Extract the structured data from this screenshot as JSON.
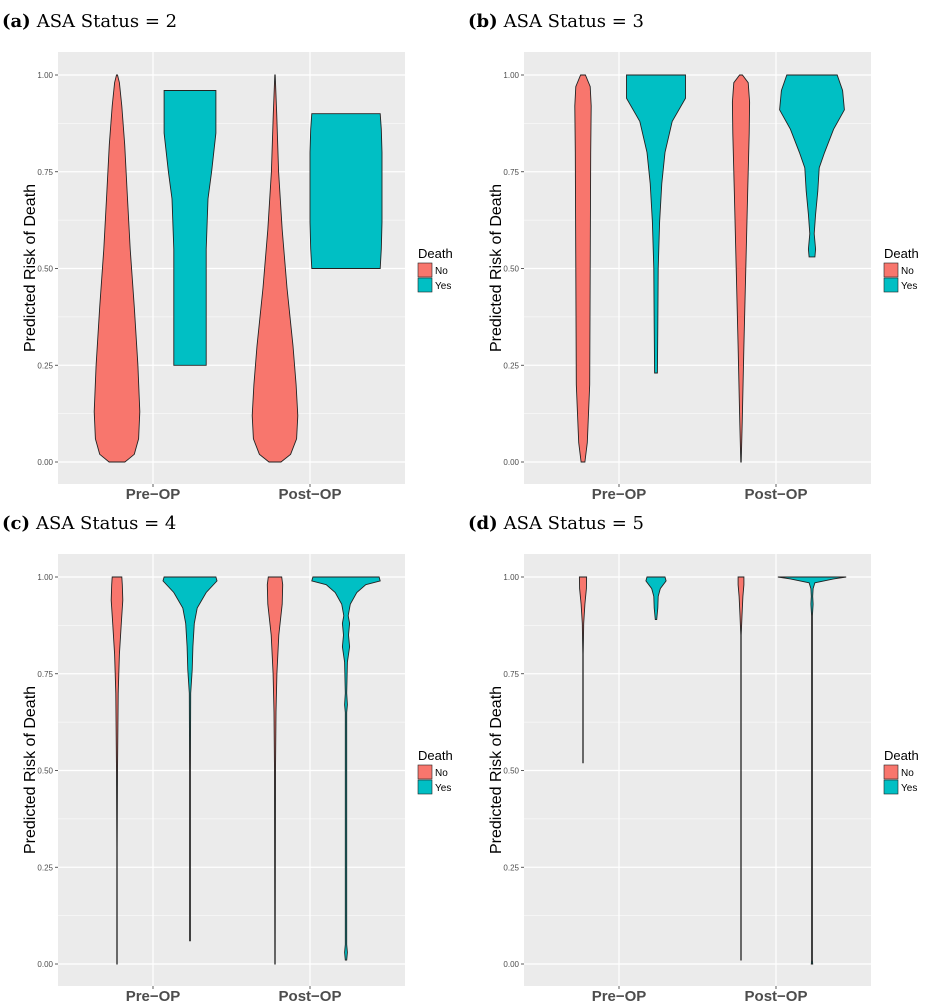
{
  "chart_data": [
    {
      "type": "violin",
      "caption_letter": "(a)",
      "caption_text": "ASA Status = 2",
      "ylabel": "Predicted Risk of Death",
      "categories": [
        "Pre−OP",
        "Post−OP"
      ],
      "yticks": [
        "0.00",
        "0.25",
        "0.50",
        "0.75",
        "1.00"
      ],
      "ylim": [
        0,
        1
      ],
      "legend": {
        "title": "Death",
        "placement": "right",
        "entries": [
          "No",
          "Yes"
        ]
      },
      "colors": {
        "No": "#F8766D",
        "Yes": "#00BFC4",
        "panel_bg": "#EBEBEB",
        "grid": "#FFFFFF"
      },
      "violins": [
        {
          "category": "Pre−OP",
          "group": "No",
          "range": [
            0.0,
            1.0
          ],
          "profile": [
            [
              0,
              0.33
            ],
            [
              0.02,
              0.72
            ],
            [
              0.06,
              0.9
            ],
            [
              0.13,
              0.95
            ],
            [
              0.25,
              0.87
            ],
            [
              0.4,
              0.72
            ],
            [
              0.55,
              0.55
            ],
            [
              0.7,
              0.42
            ],
            [
              0.82,
              0.32
            ],
            [
              0.92,
              0.2
            ],
            [
              0.98,
              0.1
            ],
            [
              1.0,
              0.02
            ]
          ]
        },
        {
          "category": "Pre−OP",
          "group": "Yes",
          "range": [
            0.25,
            0.96
          ],
          "profile": [
            [
              0.25,
              0.45
            ],
            [
              0.4,
              0.45
            ],
            [
              0.55,
              0.45
            ],
            [
              0.68,
              0.5
            ],
            [
              0.75,
              0.6
            ],
            [
              0.85,
              0.72
            ],
            [
              0.96,
              0.72
            ]
          ]
        },
        {
          "category": "Post−OP",
          "group": "No",
          "range": [
            0.0,
            1.0
          ],
          "profile": [
            [
              0,
              0.25
            ],
            [
              0.02,
              0.65
            ],
            [
              0.06,
              0.9
            ],
            [
              0.12,
              0.95
            ],
            [
              0.2,
              0.88
            ],
            [
              0.3,
              0.75
            ],
            [
              0.45,
              0.5
            ],
            [
              0.6,
              0.3
            ],
            [
              0.75,
              0.15
            ],
            [
              0.9,
              0.07
            ],
            [
              1.0,
              0.01
            ]
          ]
        },
        {
          "category": "Post−OP",
          "group": "Yes",
          "range": [
            0.5,
            0.9
          ],
          "profile": [
            [
              0.5,
              0.95
            ],
            [
              0.55,
              0.98
            ],
            [
              0.62,
              1.0
            ],
            [
              0.72,
              1.0
            ],
            [
              0.8,
              1.0
            ],
            [
              0.86,
              0.98
            ],
            [
              0.9,
              0.95
            ]
          ]
        }
      ]
    },
    {
      "type": "violin",
      "caption_letter": "(b)",
      "caption_text": "ASA Status = 3",
      "ylabel": "Predicted Risk of Death",
      "categories": [
        "Pre−OP",
        "Post−OP"
      ],
      "yticks": [
        "0.00",
        "0.25",
        "0.50",
        "0.75",
        "1.00"
      ],
      "ylim": [
        0,
        1
      ],
      "legend": {
        "title": "Death",
        "placement": "right",
        "entries": [
          "No",
          "Yes"
        ]
      },
      "colors": {
        "No": "#F8766D",
        "Yes": "#00BFC4",
        "panel_bg": "#EBEBEB",
        "grid": "#FFFFFF"
      },
      "violins": [
        {
          "category": "Pre−OP",
          "group": "No",
          "range": [
            0.0,
            1.0
          ],
          "profile": [
            [
              0,
              0.08
            ],
            [
              0.05,
              0.18
            ],
            [
              0.2,
              0.28
            ],
            [
              0.5,
              0.3
            ],
            [
              0.8,
              0.32
            ],
            [
              0.92,
              0.34
            ],
            [
              0.97,
              0.3
            ],
            [
              1.0,
              0.1
            ]
          ]
        },
        {
          "category": "Pre−OP",
          "group": "Yes",
          "range": [
            0.23,
            1.0
          ],
          "profile": [
            [
              0.23,
              0.04
            ],
            [
              0.35,
              0.05
            ],
            [
              0.5,
              0.06
            ],
            [
              0.62,
              0.1
            ],
            [
              0.72,
              0.16
            ],
            [
              0.8,
              0.25
            ],
            [
              0.88,
              0.45
            ],
            [
              0.94,
              0.82
            ],
            [
              0.97,
              0.82
            ],
            [
              1.0,
              0.82
            ]
          ]
        },
        {
          "category": "Post−OP",
          "group": "No",
          "range": [
            0.0,
            1.0
          ],
          "profile": [
            [
              0,
              0.01
            ],
            [
              0.1,
              0.05
            ],
            [
              0.3,
              0.12
            ],
            [
              0.5,
              0.2
            ],
            [
              0.7,
              0.28
            ],
            [
              0.85,
              0.34
            ],
            [
              0.93,
              0.36
            ],
            [
              0.98,
              0.3
            ],
            [
              1.0,
              0.06
            ]
          ]
        },
        {
          "category": "Post−OP",
          "group": "Yes",
          "range": [
            0.53,
            1.0
          ],
          "profile": [
            [
              0.53,
              0.08
            ],
            [
              0.55,
              0.1
            ],
            [
              0.59,
              0.06
            ],
            [
              0.64,
              0.1
            ],
            [
              0.7,
              0.16
            ],
            [
              0.76,
              0.2
            ],
            [
              0.8,
              0.35
            ],
            [
              0.86,
              0.6
            ],
            [
              0.91,
              0.9
            ],
            [
              0.96,
              0.85
            ],
            [
              1.0,
              0.7
            ]
          ]
        }
      ]
    },
    {
      "type": "violin",
      "caption_letter": "(c)",
      "caption_text": "ASA Status = 4",
      "ylabel": "Predicted Risk of Death",
      "categories": [
        "Pre−OP",
        "Post−OP"
      ],
      "yticks": [
        "0.00",
        "0.25",
        "0.50",
        "0.75",
        "1.00"
      ],
      "ylim": [
        0,
        1
      ],
      "legend": {
        "title": "Death",
        "placement": "right",
        "entries": [
          "No",
          "Yes"
        ]
      },
      "colors": {
        "No": "#F8766D",
        "Yes": "#00BFC4",
        "panel_bg": "#EBEBEB",
        "grid": "#FFFFFF"
      },
      "violins": [
        {
          "category": "Pre−OP",
          "group": "No",
          "range": [
            0.0,
            1.0
          ],
          "profile": [
            [
              0,
              0.01
            ],
            [
              0.3,
              0.01
            ],
            [
              0.5,
              0.02
            ],
            [
              0.7,
              0.05
            ],
            [
              0.8,
              0.1
            ],
            [
              0.88,
              0.18
            ],
            [
              0.94,
              0.24
            ],
            [
              0.98,
              0.22
            ],
            [
              1.0,
              0.2
            ]
          ]
        },
        {
          "category": "Pre−OP",
          "group": "Yes",
          "range": [
            0.06,
            1.0
          ],
          "profile": [
            [
              0.06,
              0.01
            ],
            [
              0.5,
              0.01
            ],
            [
              0.7,
              0.02
            ],
            [
              0.76,
              0.06
            ],
            [
              0.82,
              0.08
            ],
            [
              0.88,
              0.12
            ],
            [
              0.92,
              0.2
            ],
            [
              0.96,
              0.45
            ],
            [
              0.99,
              0.75
            ],
            [
              1.0,
              0.72
            ]
          ]
        },
        {
          "category": "Post−OP",
          "group": "No",
          "range": [
            0.0,
            1.0
          ],
          "profile": [
            [
              0,
              0.01
            ],
            [
              0.5,
              0.02
            ],
            [
              0.65,
              0.04
            ],
            [
              0.75,
              0.08
            ],
            [
              0.85,
              0.16
            ],
            [
              0.93,
              0.3
            ],
            [
              0.98,
              0.32
            ],
            [
              1.0,
              0.28
            ]
          ]
        },
        {
          "category": "Post−OP",
          "group": "Yes",
          "range": [
            0.01,
            1.0
          ],
          "profile": [
            [
              0.01,
              0.02
            ],
            [
              0.03,
              0.04
            ],
            [
              0.05,
              0.02
            ],
            [
              0.5,
              0.02
            ],
            [
              0.65,
              0.02
            ],
            [
              0.67,
              0.04
            ],
            [
              0.7,
              0.02
            ],
            [
              0.78,
              0.04
            ],
            [
              0.82,
              0.1
            ],
            [
              0.85,
              0.07
            ],
            [
              0.88,
              0.1
            ],
            [
              0.9,
              0.06
            ],
            [
              0.93,
              0.12
            ],
            [
              0.96,
              0.3
            ],
            [
              0.98,
              0.55
            ],
            [
              0.99,
              0.95
            ],
            [
              1.0,
              0.92
            ]
          ]
        }
      ]
    },
    {
      "type": "violin",
      "caption_letter": "(d)",
      "caption_text": "ASA Status = 5",
      "ylabel": "Predicted Risk of Death",
      "categories": [
        "Pre−OP",
        "Post−OP"
      ],
      "yticks": [
        "0.00",
        "0.25",
        "0.50",
        "0.75",
        "1.00"
      ],
      "ylim": [
        0,
        1
      ],
      "legend": {
        "title": "Death",
        "placement": "right",
        "entries": [
          "No",
          "Yes"
        ]
      },
      "colors": {
        "No": "#F8766D",
        "Yes": "#00BFC4",
        "panel_bg": "#EBEBEB",
        "grid": "#FFFFFF"
      },
      "violins": [
        {
          "category": "Pre−OP",
          "group": "No",
          "range": [
            0.52,
            1.0
          ],
          "profile": [
            [
              0.52,
              0.01
            ],
            [
              0.8,
              0.01
            ],
            [
              0.88,
              0.03
            ],
            [
              0.93,
              0.08
            ],
            [
              0.97,
              0.14
            ],
            [
              1.0,
              0.15
            ]
          ]
        },
        {
          "category": "Pre−OP",
          "group": "Yes",
          "range": [
            0.89,
            1.0
          ],
          "profile": [
            [
              0.89,
              0.02
            ],
            [
              0.92,
              0.05
            ],
            [
              0.95,
              0.06
            ],
            [
              0.97,
              0.12
            ],
            [
              0.99,
              0.28
            ],
            [
              1.0,
              0.25
            ]
          ]
        },
        {
          "category": "Post−OP",
          "group": "No",
          "range": [
            0.01,
            1.0
          ],
          "profile": [
            [
              0.01,
              0.01
            ],
            [
              0.85,
              0.01
            ],
            [
              0.9,
              0.04
            ],
            [
              0.95,
              0.08
            ],
            [
              0.98,
              0.12
            ],
            [
              1.0,
              0.12
            ]
          ]
        },
        {
          "category": "Post−OP",
          "group": "Yes",
          "range": [
            0.0,
            1.0
          ],
          "profile": [
            [
              0,
              0.02
            ],
            [
              0.01,
              0.01
            ],
            [
              0.9,
              0.01
            ],
            [
              0.93,
              0.03
            ],
            [
              0.95,
              0.02
            ],
            [
              0.97,
              0.03
            ],
            [
              0.985,
              0.08
            ],
            [
              0.995,
              0.6
            ],
            [
              1.0,
              0.95
            ]
          ]
        }
      ]
    }
  ]
}
